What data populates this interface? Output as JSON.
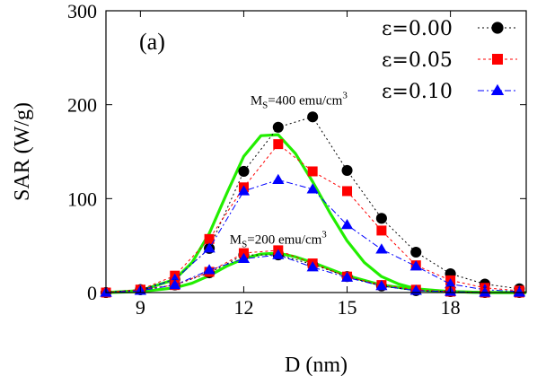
{
  "chart_data": {
    "type": "line",
    "panel_label": "(a)",
    "xlabel": "D (nm)",
    "ylabel": "SAR  (W/g)",
    "xlim": [
      8,
      20.2
    ],
    "ylim": [
      0,
      300
    ],
    "x_ticks": [
      9,
      12,
      15,
      18
    ],
    "y_ticks": [
      0,
      100,
      200,
      300
    ],
    "legend_position": "top-right",
    "annotations": [
      {
        "base": "M",
        "sub": "S",
        "text": "=400 emu/cm",
        "sup": "3",
        "at": [
          13.6,
          200
        ]
      },
      {
        "base": "M",
        "sub": "S",
        "text": "=200 emu/cm",
        "sup": "3",
        "at": [
          13.0,
          52
        ]
      }
    ],
    "series": [
      {
        "name": "ε=0.00",
        "group": "Ms=400",
        "color": "#000000",
        "marker": "circle",
        "x": [
          8,
          9,
          10,
          11,
          12,
          13,
          14,
          15,
          16,
          17,
          18,
          19,
          20
        ],
        "values": [
          0,
          3,
          14,
          47,
          129,
          176,
          187,
          130,
          79,
          43,
          20,
          9,
          4
        ]
      },
      {
        "name": "ε=0.05",
        "group": "Ms=400",
        "color": "#ff0000",
        "marker": "square",
        "x": [
          8,
          9,
          10,
          11,
          12,
          13,
          14,
          15,
          16,
          17,
          18,
          19,
          20
        ],
        "values": [
          0,
          3,
          18,
          57,
          112,
          158,
          129,
          108,
          66,
          29,
          13,
          5,
          2
        ]
      },
      {
        "name": "ε=0.10",
        "group": "Ms=400",
        "color": "#0000ff",
        "marker": "triangle",
        "x": [
          8,
          9,
          10,
          11,
          12,
          13,
          14,
          15,
          16,
          17,
          18,
          19,
          20
        ],
        "values": [
          0,
          2,
          14,
          47,
          108,
          120,
          110,
          72,
          46,
          28,
          9,
          3,
          1
        ]
      },
      {
        "name": "ε=0.00",
        "group": "Ms=200",
        "color": "#000000",
        "marker": "circle",
        "x": [
          8,
          9,
          10,
          11,
          12,
          13,
          14,
          15,
          16,
          17,
          18,
          19,
          20
        ],
        "values": [
          0,
          3,
          8,
          21,
          40,
          40,
          30,
          17,
          7,
          2,
          1,
          0,
          0
        ]
      },
      {
        "name": "ε=0.05",
        "group": "Ms=200",
        "color": "#ff0000",
        "marker": "square",
        "x": [
          8,
          9,
          10,
          11,
          12,
          13,
          14,
          15,
          16,
          17,
          18,
          19,
          20
        ],
        "values": [
          0,
          3,
          8,
          22,
          42,
          45,
          31,
          17,
          8,
          3,
          1,
          0,
          0
        ]
      },
      {
        "name": "ε=0.10",
        "group": "Ms=200",
        "color": "#0000ff",
        "marker": "triangle",
        "x": [
          8,
          9,
          10,
          11,
          12,
          13,
          14,
          15,
          16,
          17,
          18,
          19,
          20
        ],
        "values": [
          0,
          2,
          8,
          24,
          36,
          40,
          27,
          16,
          7,
          2,
          1,
          0,
          0
        ]
      }
    ],
    "fit_curves": [
      {
        "color": "#22ee00",
        "group": "Ms=400",
        "x": [
          8,
          9,
          10,
          10.5,
          11,
          11.5,
          12,
          12.5,
          13,
          13.5,
          14,
          14.5,
          15,
          15.5,
          16,
          16.5,
          17,
          18,
          19,
          20.2
        ],
        "values": [
          0,
          2,
          14,
          32,
          63,
          105,
          145,
          167,
          168,
          148,
          118,
          85,
          55,
          32,
          17,
          9,
          4,
          1,
          0,
          0
        ]
      },
      {
        "color": "#22ee00",
        "group": "Ms=200",
        "x": [
          8,
          9,
          10,
          10.5,
          11,
          11.5,
          12,
          12.5,
          13,
          13.5,
          14,
          14.5,
          15,
          16,
          17,
          18,
          19,
          20.2
        ],
        "values": [
          0,
          1,
          5,
          10,
          18,
          28,
          36,
          41,
          42,
          38,
          32,
          25,
          18,
          8,
          3,
          1,
          0,
          0
        ]
      }
    ]
  }
}
